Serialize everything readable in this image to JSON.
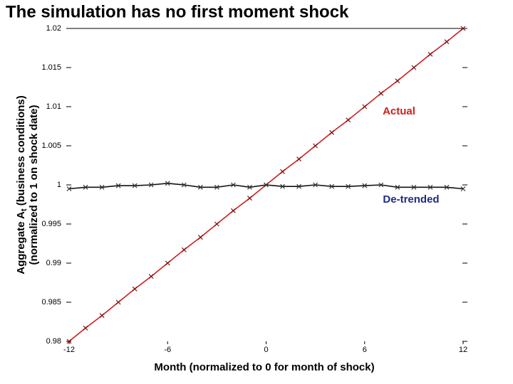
{
  "chart_data": {
    "type": "line",
    "title": "The simulation has no first moment shock",
    "xlabel": "Month (normalized to 0 for month of shock)",
    "ylabel": [
      [
        "Aggregate A",
        "t",
        " (business conditions)"
      ],
      [
        "(normalized to 1 on shock date)"
      ]
    ],
    "x": [
      -12,
      -11,
      -10,
      -9,
      -8,
      -7,
      -6,
      -5,
      -4,
      -3,
      -2,
      -1,
      0,
      1,
      2,
      3,
      4,
      5,
      6,
      7,
      8,
      9,
      10,
      11,
      12
    ],
    "series": [
      {
        "name": "Actual",
        "color": "#cc1f1f",
        "values": [
          0.98,
          0.9817,
          0.9833,
          0.985,
          0.9867,
          0.9883,
          0.99,
          0.9917,
          0.9933,
          0.995,
          0.9967,
          0.9983,
          1,
          1.0017,
          1.0033,
          1.005,
          1.0067,
          1.0083,
          1.01,
          1.0117,
          1.0133,
          1.015,
          1.0167,
          1.0183,
          1.02
        ]
      },
      {
        "name": "De-trended",
        "color": "#111111",
        "values": [
          0.9995,
          0.9997,
          0.9997,
          0.9999,
          0.9999,
          1.0,
          1.0002,
          1.0,
          0.9997,
          0.9997,
          1.0,
          0.9997,
          1.0,
          0.9998,
          0.9998,
          1.0,
          0.9998,
          0.9998,
          0.9999,
          1.0,
          0.9997,
          0.9997,
          0.9997,
          0.9997,
          0.9995
        ]
      }
    ],
    "annotations": [
      {
        "text": "Actual",
        "color": "#cc1f1f"
      },
      {
        "text": "De-trended",
        "color": "#1f2a80"
      }
    ],
    "xlim": [
      -12,
      12
    ],
    "xticks": [
      -12,
      -6,
      0,
      6,
      12
    ],
    "ylim": [
      0.98,
      1.02
    ],
    "yticks": [
      0.98,
      0.985,
      0.99,
      0.995,
      1,
      1.005,
      1.01,
      1.015,
      1.02
    ]
  }
}
